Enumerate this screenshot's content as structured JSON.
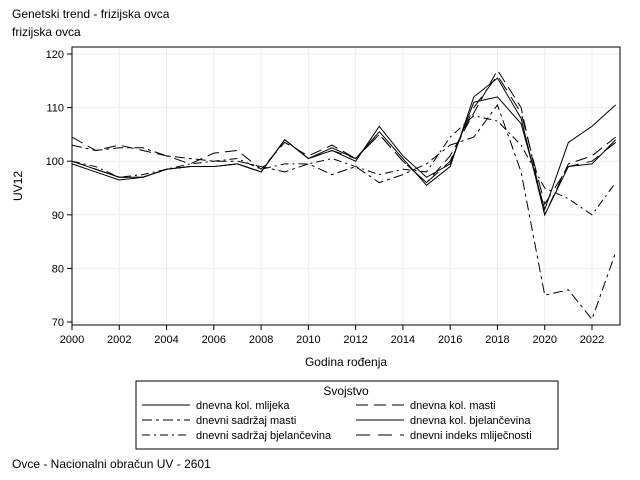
{
  "chart_data": {
    "type": "line",
    "title": "Genetski trend - frizijska ovca",
    "subtitle": "frizijska ovca",
    "xlabel": "Godina rođenja",
    "ylabel": "UV12",
    "footnote": "Ovce - Nacionalni obračun UV - 2601",
    "xlim": [
      2000,
      2023
    ],
    "ylim": [
      70,
      120
    ],
    "xticks": [
      2000,
      2002,
      2004,
      2006,
      2008,
      2010,
      2012,
      2014,
      2016,
      2018,
      2020,
      2022
    ],
    "yticks": [
      70,
      80,
      90,
      100,
      110,
      120
    ],
    "grid": true,
    "legend": {
      "title": "Svojstvo",
      "placement": "bottom"
    },
    "x": [
      2000,
      2001,
      2002,
      2003,
      2004,
      2005,
      2006,
      2007,
      2008,
      2009,
      2010,
      2011,
      2012,
      2013,
      2014,
      2015,
      2016,
      2017,
      2018,
      2019,
      2020,
      2021,
      2022,
      2023
    ],
    "series": [
      {
        "name": "dnevna kol. mlijeka",
        "dash": "",
        "values": [
          100,
          98.5,
          97,
          97,
          98.5,
          99,
          99,
          99.5,
          98,
          104,
          100.5,
          102,
          100,
          106.5,
          101,
          97,
          99.5,
          111,
          112,
          107,
          91,
          103.5,
          106.5,
          110.5
        ]
      },
      {
        "name": "dnevna kol. masti",
        "dash": "12,6",
        "values": [
          104.5,
          102,
          103,
          102,
          101,
          99.5,
          101.5,
          102,
          98.5,
          103.5,
          101,
          103,
          100.5,
          105,
          100,
          96,
          101,
          109,
          117,
          110,
          90,
          99.5,
          101,
          104.5
        ]
      },
      {
        "name": "dnevni sadržaj masti",
        "dash": "10,4,3,4",
        "values": [
          103,
          102,
          102.5,
          102.5,
          101,
          100.5,
          100,
          100,
          99,
          98,
          99.5,
          97.5,
          99,
          96,
          97.5,
          99.5,
          103,
          104.5,
          110.5,
          98,
          75,
          76,
          70.5,
          83
        ]
      },
      {
        "name": "dnevna kol. bjelančevina",
        "dash": "",
        "values": [
          99.5,
          98,
          96.5,
          97,
          98.5,
          99,
          99,
          99.5,
          98,
          104,
          100.5,
          102.5,
          100.5,
          105.5,
          100.5,
          95.5,
          99,
          112,
          115.5,
          108,
          90,
          99,
          99.5,
          104
        ]
      },
      {
        "name": "dnevni sadržaj bjelančevina",
        "dash": "8,4,2,4",
        "values": [
          100,
          99,
          97,
          97.5,
          98.5,
          99.5,
          100,
          100.5,
          98.5,
          99.5,
          99.5,
          100.5,
          99,
          97.5,
          98.5,
          98,
          104.5,
          108.5,
          107.5,
          103,
          95,
          93,
          90,
          96
        ]
      },
      {
        "name": "dnevni indeks mliječnosti",
        "dash": "14,8",
        "values": [
          100,
          98.5,
          97,
          97,
          98.5,
          99,
          99,
          99.5,
          98,
          104,
          100.5,
          102,
          100.5,
          105,
          100,
          96,
          100,
          110,
          116,
          109,
          92,
          99,
          100,
          103.5
        ]
      }
    ]
  }
}
